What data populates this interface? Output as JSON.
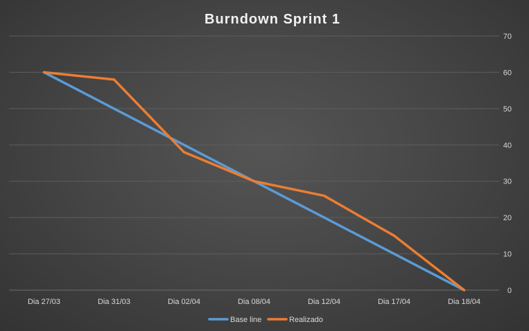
{
  "chart_data": {
    "type": "line",
    "title": "Burndown Sprint 1",
    "xlabel": "",
    "ylabel": "",
    "categories": [
      "Dia 27/03",
      "Dia 31/03",
      "Dia 02/04",
      "Dia 08/04",
      "Dia 12/04",
      "Dia 17/04",
      "Dia 18/04"
    ],
    "series": [
      {
        "name": "Base line",
        "color": "#5b9bd5",
        "values": [
          60,
          50,
          40,
          30,
          20,
          10,
          0
        ]
      },
      {
        "name": "Realizado",
        "color": "#ed7d31",
        "values": [
          60,
          58,
          38,
          30,
          26,
          15,
          0
        ]
      }
    ],
    "ylim": [
      0,
      70
    ],
    "yticks": [
      0,
      10,
      20,
      30,
      40,
      50,
      60,
      70
    ],
    "y_axis_position": "right",
    "grid": true,
    "legend": "bottom"
  }
}
